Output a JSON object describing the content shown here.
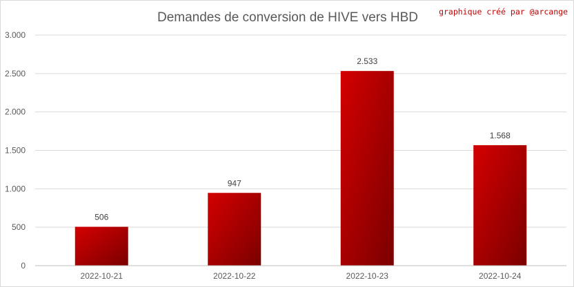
{
  "chart_data": {
    "type": "bar",
    "title": "Demandes de conversion de HIVE vers HBD",
    "credit": "graphique créé par @arcange",
    "categories": [
      "2022-10-21",
      "2022-10-22",
      "2022-10-23",
      "2022-10-24"
    ],
    "values": [
      506,
      947,
      2533,
      1568
    ],
    "value_labels": [
      "506",
      "947",
      "2.533",
      "1.568"
    ],
    "ylim": [
      0,
      3000
    ],
    "yticks": [
      0,
      500,
      1000,
      1500,
      2000,
      2500,
      3000
    ],
    "ytick_labels": [
      "0",
      "500",
      "1.000",
      "1.500",
      "2.000",
      "2.500",
      "3.000"
    ],
    "grid": true,
    "legend": "none",
    "bar_colors": [
      "#d40000",
      "#7a0000"
    ]
  }
}
